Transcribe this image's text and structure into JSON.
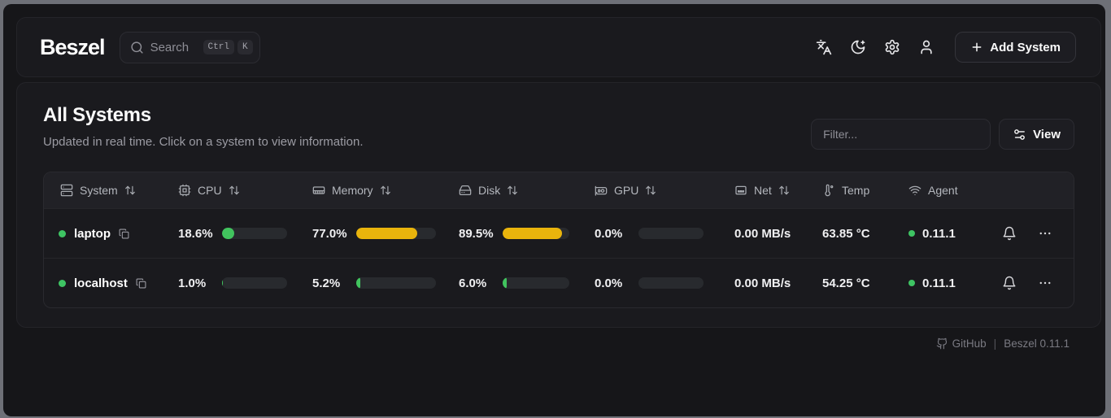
{
  "header": {
    "logo": "Beszel",
    "search": {
      "placeholder": "Search",
      "shortcut": [
        "Ctrl",
        "K"
      ]
    },
    "add_system_label": "Add System"
  },
  "main": {
    "title": "All Systems",
    "subtitle": "Updated in real time. Click on a system to view information.",
    "filter_placeholder": "Filter...",
    "view_label": "View"
  },
  "table": {
    "columns": [
      {
        "label": "System",
        "icon": "server-icon",
        "sortable": true
      },
      {
        "label": "CPU",
        "icon": "cpu-icon",
        "sortable": true
      },
      {
        "label": "Memory",
        "icon": "memory-icon",
        "sortable": true
      },
      {
        "label": "Disk",
        "icon": "hard-drive-icon",
        "sortable": true
      },
      {
        "label": "GPU",
        "icon": "gpu-icon",
        "sortable": true
      },
      {
        "label": "Net",
        "icon": "ethernet-icon",
        "sortable": true
      },
      {
        "label": "Temp",
        "icon": "thermometer-icon",
        "sortable": false
      },
      {
        "label": "Agent",
        "icon": "wifi-icon",
        "sortable": false
      }
    ],
    "rows": [
      {
        "name": "laptop",
        "status_color": "#3ec463",
        "cpu": {
          "value": "18.6%",
          "pct": 18.6,
          "color": "#41c45e"
        },
        "memory": {
          "value": "77.0%",
          "pct": 77.0,
          "color": "#e9b40c"
        },
        "disk": {
          "value": "89.5%",
          "pct": 89.5,
          "color": "#e9b40c"
        },
        "gpu": {
          "value": "0.0%",
          "pct": 0,
          "color": "#41c45e"
        },
        "net": "0.00 MB/s",
        "temp": "63.85 °C",
        "agent": {
          "version": "0.11.1",
          "dot_color": "#3ec463"
        }
      },
      {
        "name": "localhost",
        "status_color": "#3ec463",
        "cpu": {
          "value": "1.0%",
          "pct": 1.0,
          "color": "#41c45e"
        },
        "memory": {
          "value": "5.2%",
          "pct": 5.2,
          "color": "#41c45e"
        },
        "disk": {
          "value": "6.0%",
          "pct": 6.0,
          "color": "#41c45e"
        },
        "gpu": {
          "value": "0.0%",
          "pct": 0,
          "color": "#41c45e"
        },
        "net": "0.00 MB/s",
        "temp": "54.25 °C",
        "agent": {
          "version": "0.11.1",
          "dot_color": "#3ec463"
        }
      }
    ]
  },
  "footer": {
    "github_label": "GitHub",
    "separator": "|",
    "version_label": "Beszel 0.11.1"
  },
  "colors": {
    "green": "#41c45e",
    "yellow": "#e9b40c",
    "page_bg": "#161619",
    "card_bg": "#1a1a1e",
    "frame": "#6e7077"
  }
}
